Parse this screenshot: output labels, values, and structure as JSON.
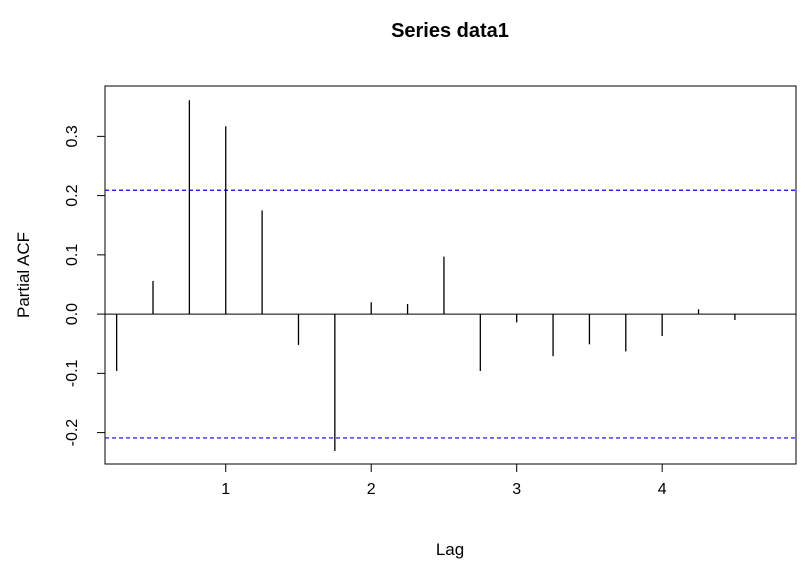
{
  "chart_data": {
    "type": "bar",
    "title": "Series  data1",
    "xlabel": "Lag",
    "ylabel": "Partial ACF",
    "xlim": [
      0.17,
      4.92
    ],
    "ylim": [
      -0.253,
      0.385
    ],
    "x_ticks": [
      1,
      2,
      3,
      4
    ],
    "y_ticks": [
      -0.2,
      -0.1,
      0.0,
      0.1,
      0.2,
      0.3
    ],
    "x_tick_labels": [
      "1",
      "2",
      "3",
      "4"
    ],
    "y_tick_labels": [
      "-0.2",
      "-0.1",
      "0.0",
      "0.1",
      "0.2",
      "0.3"
    ],
    "confidence_bounds": [
      0.209,
      -0.209
    ],
    "confidence_color": "#0000ff",
    "bar_color": "#000000",
    "lags": [
      0.25,
      0.5,
      0.75,
      1.0,
      1.25,
      1.5,
      1.75,
      2.0,
      2.25,
      2.5,
      2.75,
      3.0,
      3.25,
      3.5,
      3.75,
      4.0,
      4.25,
      4.5
    ],
    "values": [
      -0.096,
      0.056,
      0.361,
      0.317,
      0.175,
      -0.052,
      -0.231,
      0.02,
      0.017,
      0.097,
      -0.096,
      -0.014,
      -0.071,
      -0.051,
      -0.063,
      -0.037,
      0.008,
      -0.01
    ],
    "grid": false
  }
}
